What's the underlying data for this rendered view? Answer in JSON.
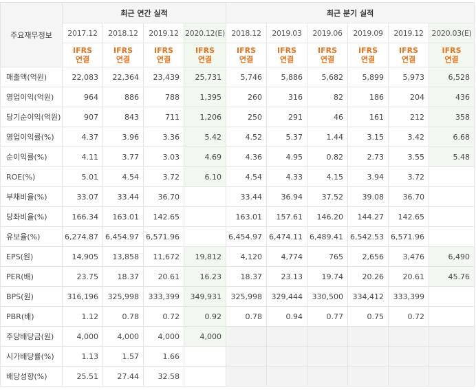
{
  "header": {
    "stub_label": "주요재무정보",
    "annual_title": "최근 연간 실적",
    "quarter_title": "최근 분기 실적",
    "annual_periods": [
      "2017.12",
      "2018.12",
      "2019.12",
      "2020.12(E)"
    ],
    "quarter_periods": [
      "2018.12",
      "2019.03",
      "2019.06",
      "2019.09",
      "2019.12",
      "2020.03(E)"
    ],
    "accounting_top": "IFRS",
    "accounting_bottom": "연결"
  },
  "colors": {
    "estimate_bg": "#f1f8f0",
    "accounting_text": "#e8731a",
    "header_bg": "#f5f5f5"
  },
  "rows": [
    {
      "label": "매출액(억원)",
      "values": [
        "22,083",
        "22,364",
        "23,439",
        "25,731",
        "5,746",
        "5,886",
        "5,682",
        "5,899",
        "5,973",
        "6,528"
      ]
    },
    {
      "label": "영업이익(억원)",
      "values": [
        "964",
        "886",
        "788",
        "1,395",
        "260",
        "316",
        "82",
        "186",
        "204",
        "436"
      ]
    },
    {
      "label": "당기순이익(억원)",
      "values": [
        "907",
        "843",
        "711",
        "1,206",
        "250",
        "291",
        "46",
        "161",
        "212",
        "358"
      ]
    },
    {
      "label": "영업이익률(%)",
      "values": [
        "4.37",
        "3.96",
        "3.36",
        "5.42",
        "4.52",
        "5.37",
        "1.44",
        "3.15",
        "3.42",
        "6.68"
      ]
    },
    {
      "label": "순이익률(%)",
      "values": [
        "4.11",
        "3.77",
        "3.03",
        "4.69",
        "4.36",
        "4.95",
        "0.82",
        "2.73",
        "3.55",
        "5.48"
      ]
    },
    {
      "label": "ROE(%)",
      "values": [
        "5.01",
        "4.54",
        "3.72",
        "6.10",
        "4.54",
        "4.33",
        "4.15",
        "3.94",
        "3.72",
        ""
      ]
    },
    {
      "label": "부채비율(%)",
      "values": [
        "33.07",
        "33.44",
        "36.70",
        "",
        "33.44",
        "36.94",
        "37.52",
        "39.08",
        "36.70",
        ""
      ]
    },
    {
      "label": "당좌비율(%)",
      "values": [
        "166.34",
        "163.01",
        "142.65",
        "",
        "163.01",
        "157.61",
        "146.20",
        "144.27",
        "142.65",
        ""
      ]
    },
    {
      "label": "유보율(%)",
      "values": [
        "6,274.87",
        "6,454.97",
        "6,571.96",
        "",
        "6,454.97",
        "6,474.11",
        "6,489.41",
        "6,542.53",
        "6,571.96",
        ""
      ]
    },
    {
      "label": "EPS(원)",
      "values": [
        "14,905",
        "13,858",
        "11,672",
        "19,812",
        "4,120",
        "4,774",
        "765",
        "2,656",
        "3,476",
        "6,490"
      ]
    },
    {
      "label": "PER(배)",
      "values": [
        "23.75",
        "18.37",
        "20.61",
        "16.23",
        "18.37",
        "23.13",
        "19.74",
        "20.26",
        "20.61",
        "45.76"
      ]
    },
    {
      "label": "BPS(원)",
      "values": [
        "316,196",
        "325,998",
        "333,399",
        "349,931",
        "325,998",
        "329,444",
        "330,500",
        "334,412",
        "333,399",
        ""
      ]
    },
    {
      "label": "PBR(배)",
      "values": [
        "1.12",
        "0.78",
        "0.72",
        "0.92",
        "0.78",
        "0.94",
        "0.77",
        "0.75",
        "0.72",
        ""
      ]
    },
    {
      "label": "주당배당금(원)",
      "values": [
        "4,000",
        "4,000",
        "4,000",
        "4,000",
        "",
        "",
        "",
        "",
        "",
        ""
      ]
    },
    {
      "label": "시가배당률(%)",
      "values": [
        "1.13",
        "1.57",
        "1.66",
        "",
        "",
        "",
        "",
        "",
        "",
        ""
      ]
    },
    {
      "label": "배당성향(%)",
      "values": [
        "25.51",
        "27.44",
        "32.58",
        "",
        "",
        "",
        "",
        "",
        "",
        ""
      ]
    }
  ]
}
